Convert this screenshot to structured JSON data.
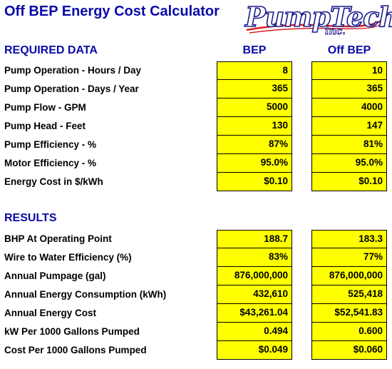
{
  "title": "Off BEP Energy Cost Calculator",
  "logo": {
    "main_text": "PumpTech",
    "sub_text": "inc."
  },
  "required": {
    "heading": "REQUIRED DATA",
    "col_bep": "BEP",
    "col_off": "Off BEP",
    "rows": [
      {
        "label": "Pump Operation - Hours / Day",
        "bep": "8",
        "off": "10"
      },
      {
        "label": "Pump Operation - Days / Year",
        "bep": "365",
        "off": "365"
      },
      {
        "label": "Pump Flow - GPM",
        "bep": "5000",
        "off": "4000"
      },
      {
        "label": "Pump Head - Feet",
        "bep": "130",
        "off": "147"
      },
      {
        "label": "Pump Efficiency - %",
        "bep": "87%",
        "off": "81%"
      },
      {
        "label": "Motor Efficiency - %",
        "bep": "95.0%",
        "off": "95.0%"
      },
      {
        "label": "Energy Cost in $/kWh",
        "bep": "$0.10",
        "off": "$0.10"
      }
    ]
  },
  "results": {
    "heading": "RESULTS",
    "rows": [
      {
        "label": "BHP At Operating Point",
        "bep": "188.7",
        "off": "183.3"
      },
      {
        "label": "Wire to Water Efficiency  (%)",
        "bep": "83%",
        "off": "77%"
      },
      {
        "label": "Annual Pumpage (gal)",
        "bep": "876,000,000",
        "off": "876,000,000"
      },
      {
        "label": "Annual Energy Consumption (kWh)",
        "bep": "432,610",
        "off": "525,418"
      },
      {
        "label": "Annual Energy Cost",
        "bep": "$43,261.04",
        "off": "$52,541.83"
      },
      {
        "label": "kW Per 1000 Gallons Pumped",
        "bep": "0.494",
        "off": "0.600"
      },
      {
        "label": "Cost Per 1000 Gallons Pumped",
        "bep": "$0.049",
        "off": "$0.060"
      }
    ]
  },
  "colors": {
    "heading": "#0a0aa8",
    "input_fill": "#ffff00",
    "logo_swoosh": "#d42020",
    "logo_outline": "#1a1a8c"
  }
}
